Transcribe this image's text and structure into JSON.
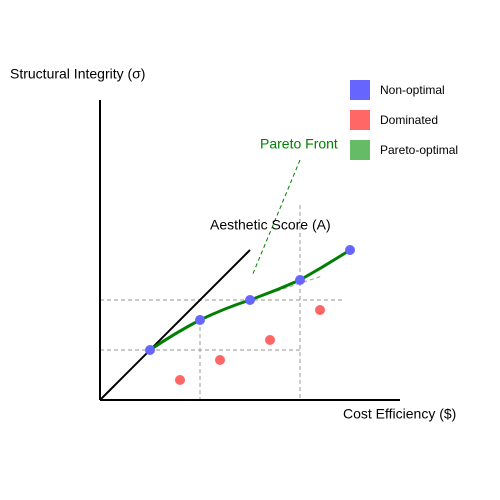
{
  "y_axis_label": "Structural Integrity (σ)",
  "x_axis_label": "Cost Efficiency ($)",
  "z_axis_label": "Aesthetic Score (A)",
  "annotation": "Pareto Front",
  "legend": [
    {
      "label": "Non-optimal",
      "color": "#6666ff"
    },
    {
      "label": "Dominated",
      "color": "#ff6666"
    },
    {
      "label": "Pareto-optimal",
      "color": "#66bb66"
    }
  ]
}
